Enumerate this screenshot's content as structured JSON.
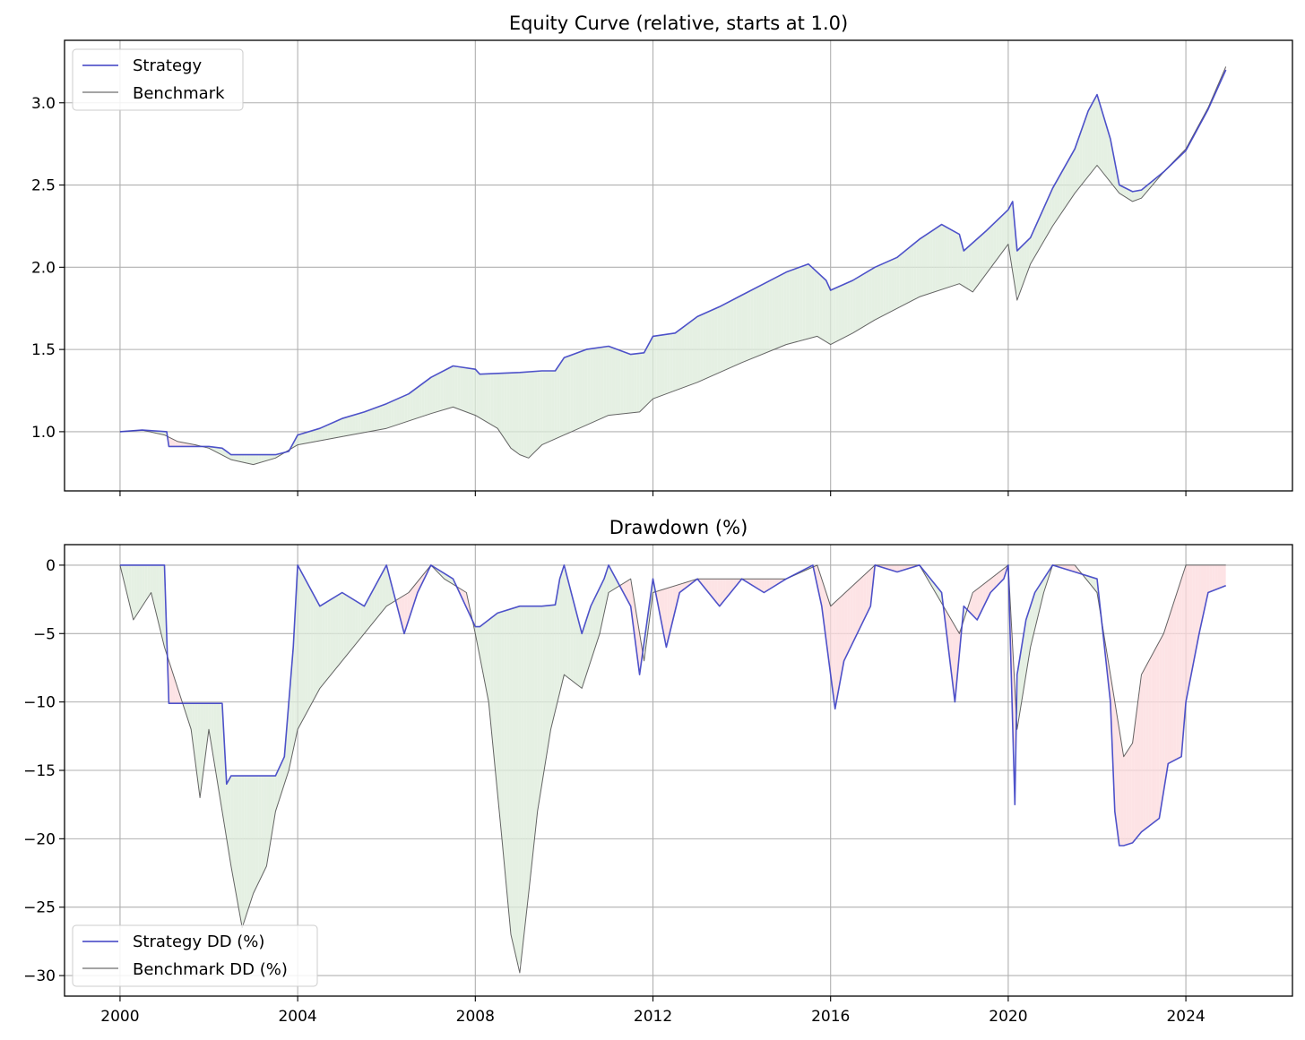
{
  "colors": {
    "strategy": "#3b3fc4",
    "benchmark": "#4a4a4a",
    "fill_outperform": "#dcebd9",
    "fill_underperform": "#fcd9dc",
    "grid": "#b0b0b0"
  },
  "chart_data": [
    {
      "type": "line",
      "title": "Equity Curve (relative, starts at 1.0)",
      "xlabel": "",
      "ylabel": "",
      "xlim": [
        1998.75,
        2026.4
      ],
      "ylim": [
        0.64,
        3.38
      ],
      "x_ticks": [
        2000,
        2004,
        2008,
        2012,
        2016,
        2020,
        2024
      ],
      "x_tick_labels_visible": false,
      "y_ticks": [
        1.0,
        1.5,
        2.0,
        2.5,
        3.0
      ],
      "y_tick_labels": [
        "1.0",
        "1.5",
        "2.0",
        "2.5",
        "3.0"
      ],
      "grid": true,
      "legend": {
        "placement": "upper-left",
        "entries": [
          "Strategy",
          "Benchmark"
        ]
      },
      "fill_between": "strategy vs benchmark (green where strategy above, red where below)",
      "series": [
        {
          "name": "Strategy",
          "color": "#3b3fc4",
          "x": [
            2000.0,
            2000.5,
            2001.05,
            2001.1,
            2001.5,
            2002.0,
            2002.3,
            2002.5,
            2003.0,
            2003.5,
            2003.8,
            2004.0,
            2004.5,
            2005.0,
            2005.5,
            2006.0,
            2006.5,
            2007.0,
            2007.5,
            2008.0,
            2008.1,
            2009.0,
            2009.5,
            2009.8,
            2010.0,
            2010.5,
            2011.0,
            2011.5,
            2011.8,
            2012.0,
            2012.5,
            2013.0,
            2013.5,
            2014.0,
            2014.5,
            2015.0,
            2015.5,
            2015.9,
            2016.0,
            2016.5,
            2017.0,
            2017.5,
            2018.0,
            2018.5,
            2018.9,
            2019.0,
            2019.5,
            2020.0,
            2020.1,
            2020.2,
            2020.5,
            2021.0,
            2021.5,
            2021.8,
            2022.0,
            2022.3,
            2022.5,
            2022.8,
            2023.0,
            2023.5,
            2024.0,
            2024.5,
            2024.9
          ],
          "y": [
            1.0,
            1.01,
            1.0,
            0.91,
            0.91,
            0.91,
            0.9,
            0.86,
            0.86,
            0.86,
            0.88,
            0.98,
            1.02,
            1.08,
            1.12,
            1.17,
            1.23,
            1.33,
            1.4,
            1.38,
            1.35,
            1.36,
            1.37,
            1.37,
            1.45,
            1.5,
            1.52,
            1.47,
            1.48,
            1.58,
            1.6,
            1.7,
            1.76,
            1.83,
            1.9,
            1.97,
            2.02,
            1.92,
            1.86,
            1.92,
            2.0,
            2.06,
            2.17,
            2.26,
            2.2,
            2.1,
            2.22,
            2.35,
            2.4,
            2.1,
            2.18,
            2.48,
            2.72,
            2.95,
            3.05,
            2.78,
            2.5,
            2.46,
            2.47,
            2.58,
            2.71,
            2.96,
            3.2
          ]
        },
        {
          "name": "Benchmark",
          "color": "#4a4a4a",
          "x": [
            2000.0,
            2000.5,
            2001.0,
            2001.3,
            2001.7,
            2002.0,
            2002.5,
            2003.0,
            2003.5,
            2004.0,
            2005.0,
            2006.0,
            2007.0,
            2007.5,
            2008.0,
            2008.5,
            2008.8,
            2009.0,
            2009.2,
            2009.5,
            2010.0,
            2011.0,
            2011.7,
            2012.0,
            2013.0,
            2014.0,
            2015.0,
            2015.7,
            2016.0,
            2016.5,
            2017.0,
            2018.0,
            2018.9,
            2019.2,
            2020.0,
            2020.2,
            2020.5,
            2021.0,
            2021.5,
            2022.0,
            2022.5,
            2022.8,
            2023.0,
            2023.5,
            2024.0,
            2024.5,
            2024.9
          ],
          "y": [
            1.0,
            1.01,
            0.98,
            0.94,
            0.92,
            0.9,
            0.83,
            0.8,
            0.84,
            0.92,
            0.97,
            1.02,
            1.11,
            1.15,
            1.1,
            1.02,
            0.9,
            0.86,
            0.84,
            0.92,
            0.98,
            1.1,
            1.12,
            1.2,
            1.3,
            1.42,
            1.53,
            1.58,
            1.53,
            1.6,
            1.68,
            1.82,
            1.9,
            1.85,
            2.14,
            1.8,
            2.02,
            2.25,
            2.45,
            2.62,
            2.45,
            2.4,
            2.42,
            2.58,
            2.72,
            2.97,
            3.22
          ]
        }
      ]
    },
    {
      "type": "line",
      "title": "Drawdown (%)",
      "xlabel": "",
      "ylabel": "",
      "xlim": [
        1998.75,
        2026.4
      ],
      "ylim": [
        -31.5,
        1.5
      ],
      "x_ticks": [
        2000,
        2004,
        2008,
        2012,
        2016,
        2020,
        2024
      ],
      "x_tick_labels": [
        "2000",
        "2004",
        "2008",
        "2012",
        "2016",
        "2020",
        "2024"
      ],
      "y_ticks": [
        0,
        -5,
        -10,
        -15,
        -20,
        -25,
        -30
      ],
      "y_tick_labels": [
        "0",
        "−5",
        "−10",
        "−15",
        "−20",
        "−25",
        "−30"
      ],
      "grid": true,
      "legend": {
        "placement": "lower-left",
        "entries": [
          "Strategy DD (%)",
          "Benchmark DD (%)"
        ]
      },
      "fill_between": "strategy DD vs benchmark DD (green where strategy shallower, red where deeper)",
      "series": [
        {
          "name": "Strategy DD (%)",
          "color": "#3b3fc4",
          "x": [
            2000.0,
            2001.0,
            2001.1,
            2001.2,
            2002.0,
            2002.3,
            2002.4,
            2002.5,
            2003.0,
            2003.5,
            2003.7,
            2003.9,
            2004.0,
            2004.5,
            2005.0,
            2005.5,
            2006.0,
            2006.4,
            2006.7,
            2007.0,
            2007.5,
            2008.0,
            2008.1,
            2008.5,
            2009.0,
            2009.5,
            2009.8,
            2009.9,
            2010.0,
            2010.4,
            2010.6,
            2010.9,
            2011.0,
            2011.5,
            2011.7,
            2012.0,
            2012.3,
            2012.6,
            2013.0,
            2013.5,
            2014.0,
            2014.5,
            2015.0,
            2015.6,
            2015.8,
            2016.0,
            2016.1,
            2016.3,
            2016.6,
            2016.9,
            2017.0,
            2017.5,
            2018.0,
            2018.5,
            2018.8,
            2019.0,
            2019.3,
            2019.6,
            2019.9,
            2020.0,
            2020.15,
            2020.2,
            2020.4,
            2020.6,
            2021.0,
            2021.5,
            2022.0,
            2022.3,
            2022.4,
            2022.5,
            2022.6,
            2022.8,
            2023.0,
            2023.4,
            2023.6,
            2023.9,
            2024.0,
            2024.3,
            2024.5,
            2024.9
          ],
          "y": [
            0.0,
            0.0,
            -10.1,
            -10.1,
            -10.1,
            -10.1,
            -16.0,
            -15.4,
            -15.4,
            -15.4,
            -14.0,
            -6.0,
            0.0,
            -3.0,
            -2.0,
            -3.0,
            0.0,
            -5.0,
            -2.0,
            0.0,
            -1.0,
            -4.5,
            -4.5,
            -3.5,
            -3.0,
            -3.0,
            -2.9,
            -1.0,
            0.0,
            -5.0,
            -3.0,
            -1.0,
            0.0,
            -3.0,
            -8.0,
            -1.0,
            -6.0,
            -2.0,
            -1.0,
            -3.0,
            -1.0,
            -2.0,
            -1.0,
            0.0,
            -3.0,
            -8.0,
            -10.5,
            -7.0,
            -5.0,
            -3.0,
            0.0,
            -0.5,
            0.0,
            -2.0,
            -10.0,
            -3.0,
            -4.0,
            -2.0,
            -1.0,
            0.0,
            -17.5,
            -8.0,
            -4.0,
            -2.0,
            0.0,
            -0.5,
            -1.0,
            -10.0,
            -18.0,
            -20.5,
            -20.5,
            -20.3,
            -19.5,
            -18.5,
            -14.5,
            -14.0,
            -10.0,
            -5.0,
            -2.0,
            -1.5
          ]
        },
        {
          "name": "Benchmark DD (%)",
          "color": "#4a4a4a",
          "x": [
            2000.0,
            2000.3,
            2000.7,
            2001.0,
            2001.3,
            2001.6,
            2001.8,
            2002.0,
            2002.3,
            2002.5,
            2002.75,
            2003.0,
            2003.3,
            2003.5,
            2003.8,
            2004.0,
            2004.5,
            2005.0,
            2005.5,
            2006.0,
            2006.5,
            2007.0,
            2007.3,
            2007.8,
            2008.0,
            2008.3,
            2008.6,
            2008.8,
            2009.0,
            2009.2,
            2009.4,
            2009.7,
            2010.0,
            2010.4,
            2010.8,
            2011.0,
            2011.5,
            2011.8,
            2012.0,
            2013.0,
            2014.0,
            2015.0,
            2015.7,
            2016.0,
            2016.5,
            2017.0,
            2018.0,
            2018.9,
            2019.2,
            2020.0,
            2020.2,
            2020.5,
            2020.8,
            2021.0,
            2021.5,
            2022.0,
            2022.3,
            2022.6,
            2022.8,
            2023.0,
            2023.5,
            2024.0,
            2024.5,
            2024.9
          ],
          "y": [
            0.0,
            -4.0,
            -2.0,
            -6.0,
            -9.0,
            -12.0,
            -17.0,
            -12.0,
            -18.0,
            -22.0,
            -26.5,
            -24.0,
            -22.0,
            -18.0,
            -15.0,
            -12.0,
            -9.0,
            -7.0,
            -5.0,
            -3.0,
            -2.0,
            0.0,
            -1.0,
            -2.0,
            -5.0,
            -10.0,
            -20.0,
            -27.0,
            -29.8,
            -24.0,
            -18.0,
            -12.0,
            -8.0,
            -9.0,
            -5.0,
            -2.0,
            -1.0,
            -7.0,
            -2.0,
            -1.0,
            -1.0,
            -1.0,
            0.0,
            -3.0,
            -1.5,
            0.0,
            0.0,
            -5.0,
            -2.0,
            0.0,
            -12.0,
            -6.0,
            -2.0,
            0.0,
            0.0,
            -2.0,
            -8.0,
            -14.0,
            -13.0,
            -8.0,
            -5.0,
            0.0,
            0.0,
            0.0
          ]
        }
      ]
    }
  ]
}
